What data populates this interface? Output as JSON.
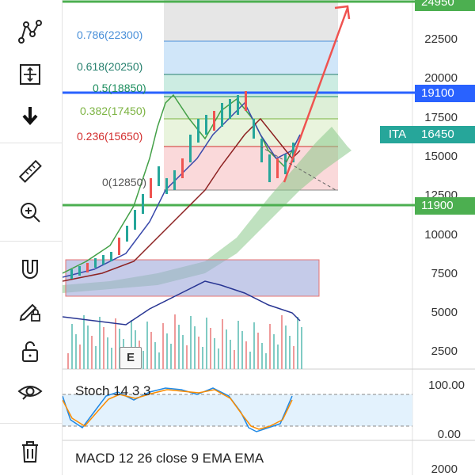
{
  "toolbar": {
    "tools": [
      {
        "name": "pattern-tool-icon"
      },
      {
        "name": "measure-box-icon"
      },
      {
        "name": "arrow-down-icon"
      },
      {
        "name": "ruler-icon"
      },
      {
        "name": "zoom-in-icon"
      },
      {
        "name": "magnet-icon"
      },
      {
        "name": "pencil-lock-icon"
      },
      {
        "name": "unlock-icon"
      },
      {
        "name": "eye-icon"
      },
      {
        "name": "trash-icon"
      }
    ]
  },
  "colors": {
    "green_line": "#4caf50",
    "blue_line": "#2962ff",
    "red_arrow": "#ef5350",
    "fib_0786": "#4a90d9",
    "fib_0618": "#26806e",
    "fib_05": "#1f8f60",
    "fib_0382": "#7cb342",
    "fib_0236": "#d32f2f",
    "fib_0": "#555555"
  },
  "price_axis": {
    "labels": [
      "24950",
      "22500",
      "20000",
      "17500",
      "15000",
      "12500",
      "10000",
      "7500",
      "5000",
      "2500"
    ],
    "tag_top": "24950",
    "tag_19100": "19100",
    "tag_11900": "11900",
    "ita_symbol": "ITA",
    "ita_price": "16450"
  },
  "fib_levels": {
    "l0786": "0.786(22300)",
    "l0618": "0.618(20250)",
    "l05": "0.5(18850)",
    "l0382": "0.382(17450)",
    "l0236": "0.236(15650)",
    "l0": "0(12850)"
  },
  "panes": {
    "stoch_label": "Stoch 14 3 3",
    "stoch_axis": [
      "100.00",
      "0.00"
    ],
    "macd_label": "MACD 12 26 close 9 EMA EMA",
    "macd_axis": [
      "2000"
    ]
  },
  "chart_misc": {
    "e_badge": "E"
  }
}
